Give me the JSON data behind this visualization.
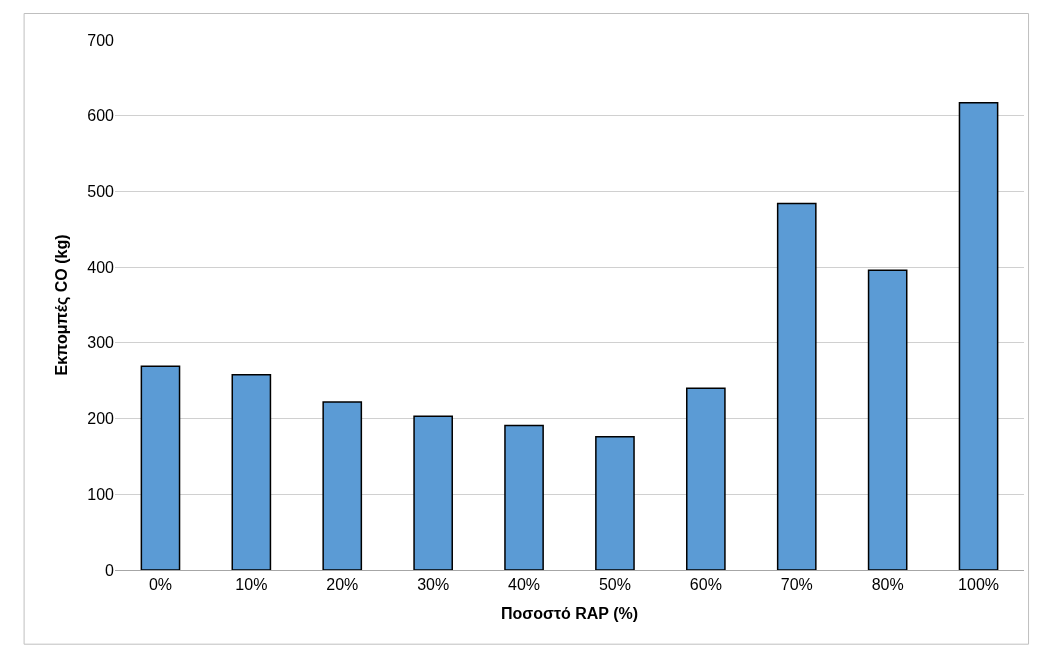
{
  "chart_data": {
    "type": "bar",
    "xlabel": "Ποσοστό RAP (%)",
    "ylabel": "Εκπομπές CO (kg)",
    "categories": [
      "0%",
      "10%",
      "20%",
      "30%",
      "40%",
      "50%",
      "60%",
      "70%",
      "80%",
      "100%"
    ],
    "values": [
      269,
      258,
      222,
      203,
      191,
      176,
      240,
      484,
      396,
      617
    ],
    "color": "#5b9bd5",
    "ylim": [
      0,
      700
    ],
    "yticks": [
      0,
      100,
      200,
      300,
      400,
      500,
      600,
      700
    ],
    "grid": "y",
    "legend": false
  }
}
